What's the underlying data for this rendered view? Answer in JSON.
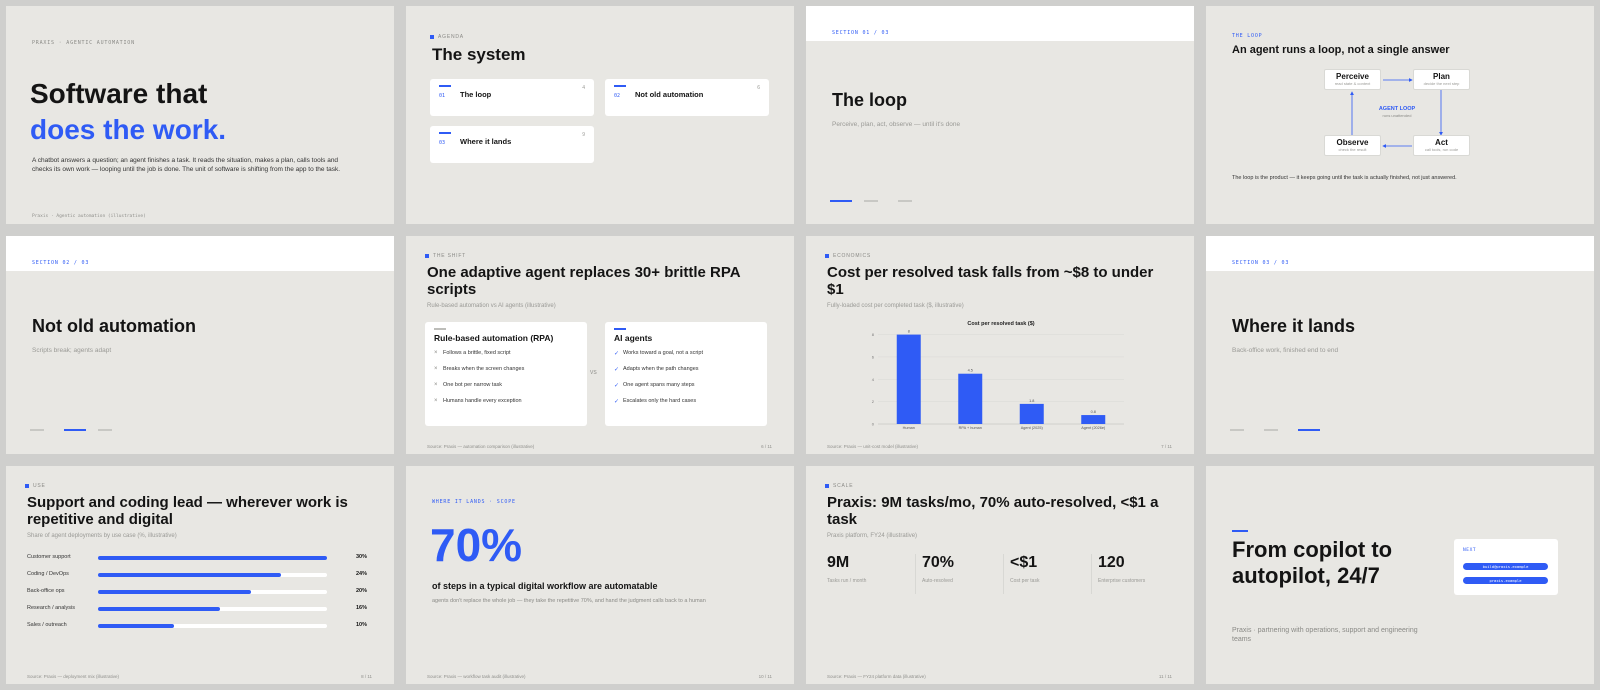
{
  "colors": {
    "accent": "#2f5bf5",
    "slide_bg": "#e8e7e3",
    "canvas_bg": "#cfcfcd"
  },
  "s1": {
    "eyebrow": "PRAXIS · AGENTIC AUTOMATION",
    "title_line1": "Software that",
    "title_line2": "does the work.",
    "body": "A chatbot answers a question; an agent finishes a task. It reads the situation, makes a plan, calls tools and checks its own work — looping until the job is done. The unit of software is shifting from the app to the task.",
    "footer": "Praxis · Agentic automation (illustrative)"
  },
  "s2": {
    "eyebrow": "AGENDA",
    "title": "The system",
    "items": [
      {
        "num": "01",
        "title": "The loop",
        "page": "4"
      },
      {
        "num": "02",
        "title": "Not old automation",
        "page": "6"
      },
      {
        "num": "03",
        "title": "Where it lands",
        "page": "9"
      }
    ]
  },
  "s3": {
    "section": "SECTION 01 / 03",
    "title": "The loop",
    "subtitle": "Perceive, plan, act, observe — until it's done"
  },
  "s4": {
    "eyebrow": "THE LOOP",
    "title": "An agent runs a loop, not a single answer",
    "nodes": {
      "perceive": {
        "title": "Perceive",
        "sub": "read state & context"
      },
      "plan": {
        "title": "Plan",
        "sub": "decide the next step"
      },
      "act": {
        "title": "Act",
        "sub": "call tools, run code"
      },
      "observe": {
        "title": "Observe",
        "sub": "check the result"
      }
    },
    "center_label": "AGENT LOOP",
    "center_sub": "runs unattended",
    "caption": "The loop is the product — it keeps going until the task is actually finished, not just answered."
  },
  "s5": {
    "section": "SECTION 02 / 03",
    "title": "Not old automation",
    "subtitle": "Scripts break; agents adapt"
  },
  "s6": {
    "eyebrow": "THE SHIFT",
    "title": "One adaptive agent replaces 30+ brittle RPA scripts",
    "subtitle": "Rule-based automation vs AI agents (illustrative)",
    "left_title": "Rule-based automation (RPA)",
    "left_items": [
      "Follows a brittle, fixed script",
      "Breaks when the screen changes",
      "One bot per narrow task",
      "Humans handle every exception"
    ],
    "vs": "VS",
    "right_title": "AI agents",
    "right_items": [
      "Works toward a goal, not a script",
      "Adapts when the path changes",
      "One agent spans many steps",
      "Escalates only the hard cases"
    ],
    "footer": "Source: Praxis — automation comparison (illustrative)",
    "page": "6 / 11"
  },
  "s7": {
    "eyebrow": "ECONOMICS",
    "title": "Cost per resolved task falls from ~$8 to under $1",
    "subtitle": "Fully-loaded cost per completed task ($, illustrative)",
    "footer": "Source: Praxis — unit-cost model (illustrative)",
    "page": "7 / 11"
  },
  "chart_data": {
    "type": "bar",
    "title": "Cost per resolved task ($)",
    "categories": [
      "Human",
      "RPA + human",
      "Agent (2025)",
      "Agent (2026e)"
    ],
    "values": [
      8,
      4.5,
      1.8,
      0.8
    ],
    "data_labels": [
      "8",
      "4.5",
      "1.8",
      "0.8"
    ],
    "yticks": [
      0,
      2,
      4,
      6,
      8
    ],
    "ylim": [
      0,
      8.5
    ],
    "grid": true,
    "xlabel": "",
    "ylabel": ""
  },
  "s8": {
    "section": "SECTION 03 / 03",
    "title": "Where it lands",
    "subtitle": "Back-office work, finished end to end"
  },
  "s9": {
    "eyebrow": "USE",
    "title": "Support and coding lead — wherever work is repetitive and digital",
    "subtitle": "Share of agent deployments by use case (%, illustrative)",
    "rows": [
      {
        "label": "Customer support",
        "value": 30,
        "display": "30%"
      },
      {
        "label": "Coding / DevOps",
        "value": 24,
        "display": "24%"
      },
      {
        "label": "Back-office ops",
        "value": 20,
        "display": "20%"
      },
      {
        "label": "Research / analysis",
        "value": 16,
        "display": "16%"
      },
      {
        "label": "Sales / outreach",
        "value": 10,
        "display": "10%"
      }
    ],
    "max": 30,
    "footer": "Source: Praxis — deployment mix (illustrative)",
    "page": "8 / 11"
  },
  "s10": {
    "eyebrow": "WHERE IT LANDS · SCOPE",
    "big": "70%",
    "headline": "of steps in a typical digital workflow are automatable",
    "sub": "agents don't replace the whole job — they take the repetitive 70%, and hand the judgment calls back to a human",
    "footer": "Source: Praxis — workflow task audit (illustrative)",
    "page": "10 / 11"
  },
  "s11": {
    "eyebrow": "SCALE",
    "title": "Praxis: 9M tasks/mo, 70% auto-resolved, <$1 a task",
    "subtitle": "Praxis platform, FY24 (illustrative)",
    "stats": [
      {
        "value": "9M",
        "label": "Tasks run / month"
      },
      {
        "value": "70%",
        "label": "Auto-resolved"
      },
      {
        "value": "<$1",
        "label": "Cost per task"
      },
      {
        "value": "120",
        "label": "Enterprise customers"
      }
    ],
    "footer": "Source: Praxis — FY24 platform data (illustrative)",
    "page": "11 / 11"
  },
  "s12": {
    "title_line1": "From copilot to",
    "title_line2": "autopilot, 24/7",
    "body": "Praxis · partnering with operations, support and engineering teams",
    "next_label": "NEXT",
    "buttons": [
      "build@praxis.example",
      "praxis.example"
    ]
  }
}
